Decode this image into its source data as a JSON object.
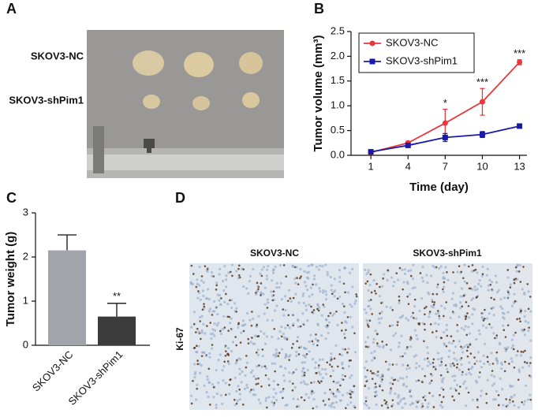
{
  "panel_labels": [
    "A",
    "B",
    "C",
    "D"
  ],
  "panel_a": {
    "row_labels": [
      "SKOV3-NC",
      "SKOV3-shPim1"
    ]
  },
  "panel_d": {
    "column_labels": [
      "SKOV3-NC",
      "SKOV3-shPim1"
    ],
    "row_label": "Ki-67"
  },
  "chart_data": [
    {
      "type": "line",
      "x_label": "Time (day)",
      "y_label": "Tumor volume (mm³)",
      "x": [
        1,
        4,
        7,
        10,
        13
      ],
      "xlim": [
        -0.6,
        13.6
      ],
      "xticks": [
        1,
        4,
        7,
        10,
        13
      ],
      "ylim": [
        0,
        2.5
      ],
      "yticks": [
        {
          "value": 0,
          "label": "0.0"
        },
        0.5,
        {
          "value": 1,
          "label": "1.0"
        },
        1.5,
        {
          "value": 2,
          "label": "2.0"
        },
        2.5
      ],
      "legend": "upper left",
      "series": [
        {
          "name": "SKOV3-NC",
          "color": "#e8383d",
          "marker": "circle",
          "values": [
            0.06,
            0.25,
            0.65,
            1.08,
            1.88
          ],
          "errors": [
            0.02,
            0.03,
            0.28,
            0.27,
            0.05
          ]
        },
        {
          "name": "SKOV3-shPim1",
          "color": "#1a1aa8",
          "marker": "square",
          "values": [
            0.07,
            0.2,
            0.36,
            0.42,
            0.59
          ],
          "errors": [
            0.02,
            0.02,
            0.08,
            0.06,
            0.02
          ]
        }
      ],
      "annotations": [
        {
          "text": "*",
          "x": 7
        },
        {
          "text": "***",
          "x": 10
        },
        {
          "text": "***",
          "x": 13
        }
      ]
    },
    {
      "type": "bar",
      "y_label": "Tumor weight (g)",
      "categories": [
        "SKOV3-NC",
        "SKOV3-shPim1"
      ],
      "values": [
        2.15,
        0.65
      ],
      "errors": [
        0.35,
        0.3
      ],
      "colors": [
        "#a3a3ab",
        "#3b3b3b"
      ],
      "ylim": [
        0,
        3
      ],
      "yticks": [
        0,
        1,
        2,
        3
      ],
      "annotations": [
        {
          "text": "**",
          "category": "SKOV3-shPim1"
        }
      ]
    }
  ]
}
